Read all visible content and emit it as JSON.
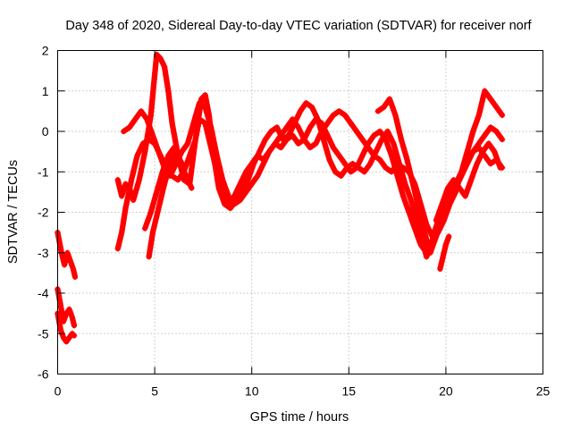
{
  "chart_data": {
    "type": "scatter",
    "title": "Day 348 of 2020, Sidereal Day-to-day VTEC variation (SDTVAR) for receiver norf",
    "xlabel": "GPS time / hours",
    "ylabel": "SDTVAR / TECUs",
    "xlim": [
      0,
      25
    ],
    "ylim": [
      -6,
      2
    ],
    "xticks": [
      0,
      5,
      10,
      15,
      20,
      25
    ],
    "yticks": [
      -6,
      -5,
      -4,
      -3,
      -2,
      -1,
      0,
      1,
      2
    ],
    "grid": true,
    "marker": "+",
    "color": "#ff0000",
    "series": [
      {
        "name": "s1",
        "x": [
          0.0,
          0.2,
          0.35,
          0.5,
          0.65,
          0.8,
          0.9
        ],
        "y": [
          -2.5,
          -3.0,
          -3.3,
          -3.0,
          -3.2,
          -3.4,
          -3.6
        ]
      },
      {
        "name": "s2",
        "x": [
          0.0,
          0.15,
          0.3,
          0.45,
          0.6,
          0.75,
          0.85
        ],
        "y": [
          -3.9,
          -4.3,
          -4.7,
          -4.5,
          -4.4,
          -4.6,
          -4.8
        ]
      },
      {
        "name": "s3",
        "x": [
          0.0,
          0.15,
          0.3,
          0.45,
          0.6,
          0.75,
          0.85
        ],
        "y": [
          -4.5,
          -4.9,
          -5.1,
          -5.2,
          -5.1,
          -5.0,
          -5.05
        ]
      },
      {
        "name": "s4",
        "x": [
          3.1,
          3.3,
          3.5,
          3.7,
          3.9,
          4.2,
          4.5,
          4.8,
          5.1,
          5.3,
          5.5,
          5.7,
          5.9,
          6.2,
          6.5,
          6.8,
          7.1,
          7.4,
          7.6,
          7.8,
          8.0,
          8.3,
          8.6,
          8.9,
          9.2,
          9.5,
          9.8,
          10.1,
          10.4,
          10.7,
          11.0,
          11.3,
          11.6,
          11.9,
          12.2,
          12.5,
          12.8,
          13.1,
          13.4,
          13.7,
          14.0,
          14.3,
          14.6,
          14.9,
          15.2,
          15.5,
          15.8,
          16.1,
          16.4,
          16.7,
          17.0,
          17.3,
          17.6,
          17.9,
          18.2,
          18.5,
          18.8,
          19.0,
          19.2,
          19.4,
          19.6,
          19.9,
          20.2,
          20.5,
          20.8,
          21.1,
          21.4,
          21.7,
          22.0,
          22.3,
          22.6,
          22.9
        ],
        "y": [
          -1.2,
          -1.6,
          -1.3,
          -1.4,
          -1.7,
          -1.2,
          -0.5,
          0.4,
          1.9,
          1.8,
          1.6,
          1.0,
          0.2,
          -0.6,
          -1.2,
          -1.3,
          -0.2,
          0.8,
          0.9,
          0.4,
          -0.5,
          -1.4,
          -1.8,
          -1.9,
          -1.7,
          -1.5,
          -1.2,
          -0.8,
          -0.5,
          -0.2,
          0.0,
          0.1,
          -0.2,
          -0.1,
          0.2,
          0.5,
          0.7,
          0.6,
          0.3,
          -0.2,
          -0.7,
          -1.0,
          -1.1,
          -0.9,
          -0.8,
          -0.9,
          -1.0,
          -0.8,
          -0.5,
          -0.2,
          0.0,
          -0.3,
          -0.8,
          -1.3,
          -1.7,
          -2.2,
          -2.7,
          -3.1,
          -2.9,
          -2.5,
          -2.2,
          -2.0,
          -1.8,
          -1.5,
          -1.0,
          -0.5,
          0.0,
          0.4,
          1.0,
          0.8,
          0.6,
          0.4
        ]
      },
      {
        "name": "s5",
        "x": [
          3.1,
          3.3,
          3.5,
          3.8,
          4.1,
          4.4,
          4.7,
          5.0,
          5.3,
          5.6,
          5.9,
          6.2,
          6.5,
          6.8,
          7.1,
          7.3,
          7.6,
          7.9,
          8.2,
          8.5,
          8.8,
          9.1,
          9.4,
          9.7,
          10.0,
          10.3,
          10.6,
          10.9,
          11.2,
          11.5,
          11.8,
          12.1,
          12.4,
          12.7,
          13.0,
          13.3,
          13.6,
          13.9,
          14.2,
          14.5,
          14.8,
          15.1,
          15.4,
          15.7,
          16.0,
          16.3,
          16.6,
          16.9,
          17.2,
          17.5,
          17.8,
          18.1,
          18.4,
          18.7,
          19.0,
          19.3,
          19.6,
          19.9,
          20.2,
          20.5,
          20.8,
          21.1,
          21.4,
          21.7,
          22.0,
          22.3,
          22.6,
          22.9
        ],
        "y": [
          -2.9,
          -2.5,
          -1.9,
          -1.2,
          -0.6,
          -0.3,
          -0.2,
          -0.3,
          -0.6,
          -0.9,
          -1.1,
          -1.2,
          -1.0,
          -0.6,
          -0.2,
          0.3,
          0.2,
          -0.4,
          -1.0,
          -1.5,
          -1.8,
          -1.6,
          -1.3,
          -1.0,
          -0.8,
          -0.6,
          -0.7,
          -0.5,
          -0.3,
          -0.4,
          -0.2,
          -0.1,
          -0.3,
          -0.2,
          0.1,
          0.3,
          0.2,
          -0.1,
          -0.4,
          -0.6,
          -0.8,
          -1.0,
          -0.9,
          -0.6,
          -0.3,
          -0.1,
          0.0,
          -0.2,
          -0.6,
          -1.1,
          -1.6,
          -2.0,
          -2.4,
          -2.8,
          -3.0,
          -2.7,
          -2.3,
          -1.9,
          -1.6,
          -1.3,
          -1.0,
          -0.7,
          -0.5,
          -0.4,
          -0.6,
          -0.8,
          -0.7,
          -0.9
        ]
      },
      {
        "name": "s6",
        "x": [
          3.4,
          3.7,
          4.0,
          4.3,
          4.6,
          4.9,
          5.2,
          5.5,
          5.8,
          6.1,
          6.4,
          6.7,
          7.0,
          7.3,
          7.6,
          7.9,
          8.2,
          8.5,
          8.8,
          9.1,
          9.4,
          9.7,
          10.0,
          10.3,
          10.6,
          10.9,
          11.2,
          11.5,
          11.8,
          12.1,
          12.4,
          12.7,
          13.0,
          13.3,
          13.6,
          13.9,
          14.2,
          14.5,
          14.8,
          15.1,
          15.4,
          15.7,
          16.0,
          16.3,
          16.6,
          16.9,
          17.2,
          17.5,
          17.8,
          18.1,
          18.4,
          18.7,
          19.0,
          19.3,
          19.6,
          19.9,
          20.2,
          20.5,
          20.8,
          21.1,
          21.4,
          21.7,
          22.0,
          22.3,
          22.6,
          22.9
        ],
        "y": [
          0.0,
          0.1,
          0.3,
          0.5,
          0.3,
          -0.1,
          -0.5,
          -0.9,
          -1.1,
          -0.8,
          -0.5,
          -0.3,
          0.2,
          0.7,
          0.6,
          0.1,
          -0.6,
          -1.2,
          -1.6,
          -1.8,
          -1.7,
          -1.5,
          -1.3,
          -1.1,
          -0.8,
          -0.5,
          -0.3,
          -0.1,
          0.1,
          0.3,
          0.1,
          -0.2,
          -0.4,
          -0.3,
          0.0,
          0.2,
          0.4,
          0.5,
          0.4,
          0.2,
          0.0,
          -0.2,
          -0.4,
          -0.6,
          -0.7,
          -0.9,
          -1.0,
          -0.8,
          -0.9,
          -1.0,
          -1.3,
          -1.8,
          -2.3,
          -2.6,
          -2.5,
          -2.2,
          -1.8,
          -1.4,
          -1.1,
          -0.8,
          -0.5,
          -0.3,
          -0.1,
          0.1,
          0.0,
          -0.2
        ]
      },
      {
        "name": "s7",
        "x": [
          4.5,
          4.8,
          5.1,
          5.4,
          5.7,
          6.0,
          6.3,
          6.6,
          6.9
        ],
        "y": [
          -2.4,
          -2.0,
          -1.5,
          -1.0,
          -0.6,
          -0.4,
          -0.7,
          -1.1,
          -1.4
        ]
      },
      {
        "name": "s8",
        "x": [
          4.7,
          4.9,
          5.2,
          5.5,
          5.8,
          6.1,
          6.4
        ],
        "y": [
          -3.1,
          -2.5,
          -1.9,
          -1.3,
          -0.8,
          -0.5,
          -0.8
        ]
      },
      {
        "name": "s9",
        "x": [
          16.5,
          16.8,
          17.1,
          17.4,
          17.7,
          18.0,
          18.3,
          18.6,
          18.9,
          19.2,
          19.5,
          19.8
        ],
        "y": [
          0.5,
          0.6,
          0.8,
          0.4,
          -0.2,
          -0.7,
          -1.3,
          -1.9,
          -2.5,
          -3.0,
          -2.6,
          -2.2
        ]
      },
      {
        "name": "s10",
        "x": [
          19.7,
          19.85,
          20.0,
          20.15
        ],
        "y": [
          -3.4,
          -3.1,
          -2.8,
          -2.6
        ]
      },
      {
        "name": "s11",
        "x": [
          19.5,
          19.8,
          20.1,
          20.4,
          20.7,
          21.0,
          21.3,
          21.6,
          21.9,
          22.2,
          22.5,
          22.8
        ],
        "y": [
          -2.2,
          -1.8,
          -1.4,
          -1.2,
          -1.4,
          -1.6,
          -1.2,
          -0.8,
          -0.5,
          -0.3,
          -0.5,
          -0.9
        ]
      }
    ]
  }
}
